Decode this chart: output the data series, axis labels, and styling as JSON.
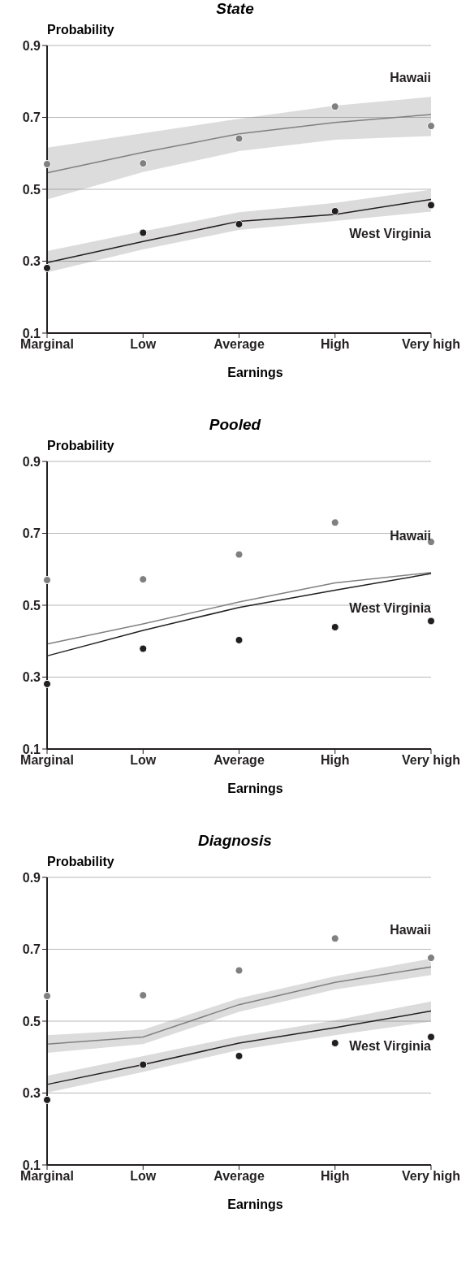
{
  "chart_data": [
    {
      "type": "line",
      "title": "State",
      "xlabel": "Earnings",
      "ylabel": "Probability",
      "categories": [
        "Marginal",
        "Low",
        "Average",
        "High",
        "Very high"
      ],
      "ylim": [
        0.1,
        0.9
      ],
      "yticks": [
        0.1,
        0.3,
        0.5,
        0.7,
        0.9
      ],
      "grid": "y",
      "series": [
        {
          "name": "Hawaii",
          "color": "#808080",
          "values": [
            0.546,
            0.603,
            0.654,
            0.686,
            0.708
          ],
          "lower": [
            0.472,
            0.548,
            0.606,
            0.638,
            0.648
          ],
          "upper": [
            0.616,
            0.656,
            0.696,
            0.733,
            0.757
          ]
        },
        {
          "name": "West Virginia",
          "color": "#231f20",
          "values": [
            0.296,
            0.355,
            0.411,
            0.43,
            0.472
          ],
          "lower": [
            0.269,
            0.333,
            0.387,
            0.412,
            0.438
          ],
          "upper": [
            0.328,
            0.383,
            0.436,
            0.462,
            0.499
          ]
        },
        {
          "type": "scatter",
          "marker": "circle",
          "color": "#808080",
          "values": [
            0.57,
            0.572,
            0.641,
            0.73,
            0.676
          ]
        },
        {
          "type": "scatter",
          "marker": "circle",
          "color": "#231f20",
          "values": [
            0.281,
            0.379,
            0.403,
            0.439,
            0.456
          ]
        }
      ]
    },
    {
      "type": "line",
      "title": "Pooled",
      "xlabel": "Earnings",
      "ylabel": "Probability",
      "categories": [
        "Marginal",
        "Low",
        "Average",
        "High",
        "Very high"
      ],
      "ylim": [
        0.1,
        0.9
      ],
      "yticks": [
        0.1,
        0.3,
        0.5,
        0.7,
        0.9
      ],
      "grid": "y",
      "series": [
        {
          "name": "Hawaii",
          "color": "#808080",
          "values": [
            0.392,
            0.448,
            0.509,
            0.562,
            0.591
          ]
        },
        {
          "name": "West Virginia",
          "color": "#231f20",
          "values": [
            0.359,
            0.43,
            0.494,
            0.542,
            0.588
          ]
        },
        {
          "type": "scatter",
          "marker": "circle",
          "color": "#808080",
          "values": [
            0.57,
            0.572,
            0.641,
            0.73,
            0.676
          ]
        },
        {
          "type": "scatter",
          "marker": "circle",
          "color": "#231f20",
          "values": [
            0.281,
            0.379,
            0.403,
            0.439,
            0.456
          ]
        }
      ]
    },
    {
      "type": "line",
      "title": "Diagnosis",
      "xlabel": "Earnings",
      "ylabel": "Probability",
      "categories": [
        "Marginal",
        "Low",
        "Average",
        "High",
        "Very high"
      ],
      "ylim": [
        0.1,
        0.9
      ],
      "yticks": [
        0.1,
        0.3,
        0.5,
        0.7,
        0.9
      ],
      "grid": "y",
      "series": [
        {
          "name": "Hawaii",
          "color": "#808080",
          "values": [
            0.436,
            0.456,
            0.546,
            0.608,
            0.651
          ],
          "lower": [
            0.412,
            0.436,
            0.526,
            0.588,
            0.628
          ],
          "upper": [
            0.461,
            0.476,
            0.564,
            0.625,
            0.674
          ]
        },
        {
          "name": "West Virginia",
          "color": "#231f20",
          "values": [
            0.324,
            0.379,
            0.439,
            0.482,
            0.528
          ],
          "lower": [
            0.301,
            0.359,
            0.42,
            0.461,
            0.499
          ],
          "upper": [
            0.348,
            0.403,
            0.458,
            0.502,
            0.555
          ]
        },
        {
          "type": "scatter",
          "marker": "circle",
          "color": "#808080",
          "values": [
            0.57,
            0.572,
            0.641,
            0.73,
            0.676
          ]
        },
        {
          "type": "scatter",
          "marker": "circle",
          "color": "#231f20",
          "values": [
            0.281,
            0.379,
            0.403,
            0.439,
            0.456
          ]
        }
      ]
    }
  ]
}
